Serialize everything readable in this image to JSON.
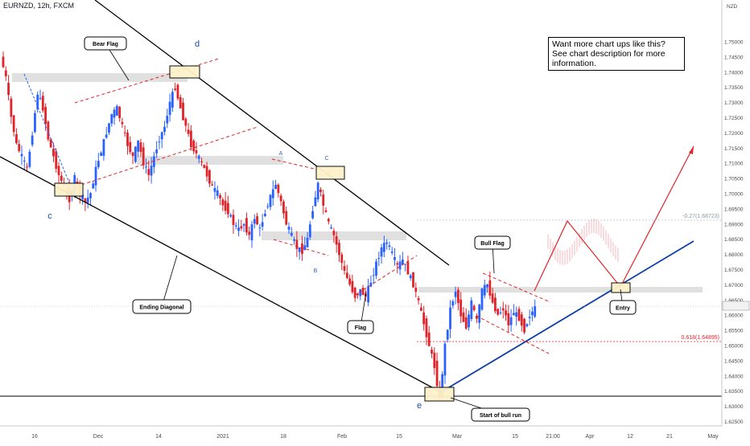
{
  "header": {
    "symbol": "EURNZD, 12h, FXCM"
  },
  "promo": {
    "line1": "Want more chart ups like this?",
    "line2": "See chart description for more",
    "line3": "information."
  },
  "colors": {
    "up": "#2962ff",
    "down": "#e1232a",
    "trend": "#000000",
    "support": "#0d3ea8",
    "projection": "#e1232a",
    "dashed_channel": "#e1232a",
    "zone": "#d8d8d8",
    "zone_box": "#fdf2c9"
  },
  "chart_data": {
    "type": "candlestick",
    "symbol": "EURNZD",
    "interval": "12h",
    "source": "FXCM",
    "currency": "NZD",
    "ylim": [
      1.62,
      1.757
    ],
    "y_ticks": [
      "1.75000",
      "1.74500",
      "1.74000",
      "1.73500",
      "1.73000",
      "1.72500",
      "1.72000",
      "1.71500",
      "1.71000",
      "1.70500",
      "1.70000",
      "1.69500",
      "1.69000",
      "1.68500",
      "1.68000",
      "1.67500",
      "1.67000",
      "1.66500",
      "1.66000",
      "1.65500",
      "1.65000",
      "1.64500",
      "1.64000",
      "1.63500",
      "1.63000",
      "1.62500"
    ],
    "x_ticks": [
      "16",
      "Dec",
      "14",
      "2021",
      "18",
      "Feb",
      "15",
      "Mar",
      "15",
      "21:00",
      "Apr",
      "12",
      "21",
      "May"
    ],
    "current_price": "1.66016",
    "fib_levels": [
      {
        "label": "-0.27(1.68723)",
        "value": 1.68723
      },
      {
        "label": "0.618(1.64895)",
        "value": 1.64895
      }
    ],
    "price_path": [
      1.745,
      1.738,
      1.725,
      1.716,
      1.712,
      1.708,
      1.72,
      1.733,
      1.728,
      1.718,
      1.712,
      1.706,
      1.702,
      1.698,
      1.705,
      1.7,
      1.697,
      1.7,
      1.708,
      1.714,
      1.72,
      1.726,
      1.728,
      1.722,
      1.716,
      1.712,
      1.717,
      1.71,
      1.706,
      1.712,
      1.718,
      1.722,
      1.73,
      1.735,
      1.728,
      1.722,
      1.716,
      1.713,
      1.71,
      1.706,
      1.702,
      1.7,
      1.696,
      1.694,
      1.69,
      1.688,
      1.69,
      1.686,
      1.692,
      1.688,
      1.694,
      1.699,
      1.703,
      1.697,
      1.69,
      1.686,
      1.682,
      1.681,
      1.685,
      1.695,
      1.703,
      1.696,
      1.69,
      1.686,
      1.68,
      1.674,
      1.67,
      1.666,
      1.668,
      1.666,
      1.671,
      1.677,
      1.682,
      1.684,
      1.68,
      1.676,
      1.678,
      1.674,
      1.67,
      1.664,
      1.657,
      1.65,
      1.643,
      1.632,
      1.65,
      1.662,
      1.668,
      1.66,
      1.656,
      1.664,
      1.658,
      1.668,
      1.67,
      1.664,
      1.66,
      1.662,
      1.657,
      1.661,
      1.659,
      1.655,
      1.66,
      1.662
    ],
    "annotations": [
      {
        "kind": "wave",
        "label": "d"
      },
      {
        "kind": "wave",
        "label": "c"
      },
      {
        "kind": "wave",
        "label": "e"
      },
      {
        "kind": "minor",
        "label": "A"
      },
      {
        "kind": "minor",
        "label": "B"
      },
      {
        "kind": "minor",
        "label": "C"
      },
      {
        "kind": "callout",
        "label": "Bear Flag"
      },
      {
        "kind": "callout",
        "label": "Ending Diagonal"
      },
      {
        "kind": "callout",
        "label": "Flag"
      },
      {
        "kind": "callout",
        "label": "Bull Flag"
      },
      {
        "kind": "callout",
        "label": "Entry"
      },
      {
        "kind": "callout",
        "label": "Start of bull run"
      }
    ],
    "legend": "none",
    "grid": false
  }
}
